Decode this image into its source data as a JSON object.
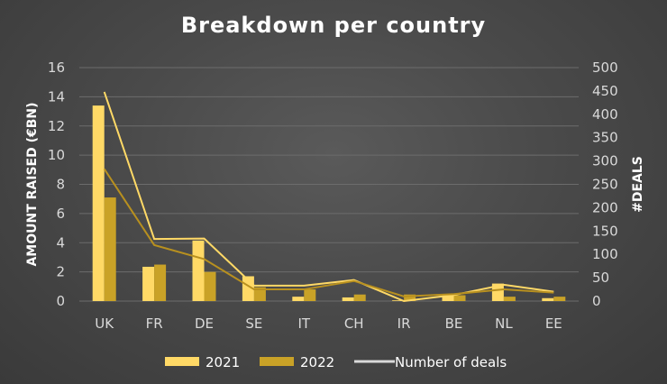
{
  "chart_data": {
    "type": "bar",
    "title": "Breakdown per country",
    "categories": [
      "UK",
      "FR",
      "DE",
      "SE",
      "IT",
      "CH",
      "IR",
      "BE",
      "NL",
      "EE"
    ],
    "series": [
      {
        "name": "2021",
        "kind": "bar",
        "axis": "left",
        "color": "#ffd966",
        "values": [
          13.4,
          2.35,
          4.15,
          1.7,
          0.3,
          0.25,
          0.05,
          0.4,
          1.2,
          0.2
        ]
      },
      {
        "name": "2022",
        "kind": "bar",
        "axis": "left",
        "color": "#c9a227",
        "values": [
          7.1,
          2.5,
          2.0,
          0.95,
          0.8,
          0.45,
          0.45,
          0.4,
          0.3,
          0.3
        ]
      },
      {
        "name": "Number of deals",
        "kind": "line",
        "axis": "right",
        "color": "#ffd966",
        "values": [
          448,
          133,
          134,
          33,
          33,
          45,
          0,
          13,
          35,
          20
        ]
      },
      {
        "name": "",
        "kind": "line",
        "axis": "right",
        "color": "#b8901f",
        "values": [
          283,
          120,
          90,
          25,
          25,
          43,
          10,
          15,
          25,
          18
        ]
      }
    ],
    "ylabel": "AMOUNT RAISED (€BN)",
    "y2label": "#DEALS",
    "ylim": [
      0,
      16
    ],
    "y2lim": [
      0,
      500
    ],
    "yticks": [
      "0",
      "2",
      "4",
      "6",
      "8",
      "10",
      "12",
      "14",
      "16"
    ],
    "y2ticks": [
      "0",
      "50",
      "100",
      "150",
      "200",
      "250",
      "300",
      "350",
      "400",
      "450",
      "500"
    ],
    "grid": true,
    "legend_position": "bottom",
    "legend": [
      "2021",
      "2022",
      "Number of deals"
    ],
    "legend_line_color": "#d9d9d9"
  }
}
